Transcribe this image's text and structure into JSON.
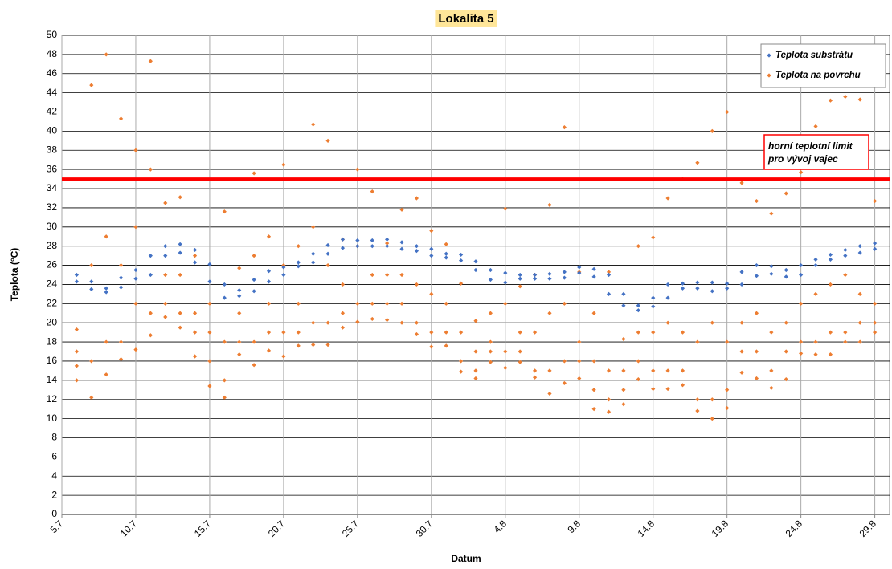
{
  "chart_data": {
    "type": "scatter",
    "title": "Lokalita 5",
    "x_label": "Datum",
    "y_label": "Teplota (°C)",
    "xlim": [
      0,
      56
    ],
    "ylim": [
      0,
      50
    ],
    "xticks": [
      {
        "value": 0,
        "label": "5.7"
      },
      {
        "value": 5,
        "label": "10.7"
      },
      {
        "value": 10,
        "label": "15.7"
      },
      {
        "value": 15,
        "label": "20.7"
      },
      {
        "value": 20,
        "label": "25.7"
      },
      {
        "value": 25,
        "label": "30.7"
      },
      {
        "value": 30,
        "label": "4.8"
      },
      {
        "value": 35,
        "label": "9.8"
      },
      {
        "value": 40,
        "label": "14.8"
      },
      {
        "value": 45,
        "label": "19.8"
      },
      {
        "value": 50,
        "label": "24.8"
      },
      {
        "value": 55,
        "label": "29.8"
      }
    ],
    "yticks": [
      0,
      2,
      4,
      6,
      8,
      10,
      12,
      14,
      16,
      18,
      20,
      22,
      24,
      26,
      28,
      30,
      32,
      34,
      36,
      38,
      40,
      42,
      44,
      46,
      48,
      50
    ],
    "grid": true,
    "legend": "top-right",
    "reference_line": {
      "value": 35,
      "color": "#ff0000",
      "label": [
        "horní teplotní limit",
        "pro vývoj  vajec"
      ]
    },
    "series": [
      {
        "name": "Teplota na povrchu",
        "color": "#ed7d31",
        "x": [
          1,
          1,
          1,
          1,
          2,
          2,
          2,
          2,
          3,
          3,
          3,
          3,
          4,
          4,
          4,
          4,
          5,
          5,
          5,
          5,
          6,
          6,
          6,
          6,
          7,
          7,
          7,
          7,
          8,
          8,
          8,
          8,
          9,
          9,
          9,
          9,
          10,
          10,
          10,
          10,
          11,
          11,
          11,
          11,
          12,
          12,
          12,
          12,
          13,
          13,
          13,
          13,
          14,
          14,
          14,
          14,
          15,
          15,
          15,
          15,
          16,
          16,
          16,
          16,
          17,
          17,
          17,
          17,
          18,
          18,
          18,
          18,
          19,
          19,
          19,
          19,
          20,
          20,
          20,
          20,
          21,
          21,
          21,
          21,
          22,
          22,
          22,
          22,
          23,
          23,
          23,
          23,
          24,
          24,
          24,
          24,
          25,
          25,
          25,
          25,
          26,
          26,
          26,
          26,
          27,
          27,
          27,
          27,
          28,
          28,
          28,
          28,
          29,
          29,
          29,
          29,
          30,
          30,
          30,
          30,
          31,
          31,
          31,
          31,
          32,
          32,
          32,
          32,
          33,
          33,
          33,
          33,
          34,
          34,
          34,
          34,
          35,
          35,
          35,
          35,
          36,
          36,
          36,
          36,
          37,
          37,
          37,
          37,
          38,
          38,
          38,
          38,
          39,
          39,
          39,
          39,
          40,
          40,
          40,
          40,
          41,
          41,
          41,
          41,
          42,
          42,
          42,
          42,
          43,
          43,
          43,
          43,
          44,
          44,
          44,
          44,
          45,
          45,
          45,
          45,
          46,
          46,
          46,
          46,
          47,
          47,
          47,
          47,
          48,
          48,
          48,
          48,
          49,
          49,
          49,
          49,
          50,
          50,
          50,
          50,
          51,
          51,
          51,
          51,
          52,
          52,
          52,
          52,
          53,
          53,
          53,
          53,
          54,
          54,
          54,
          54,
          55,
          55,
          55,
          55
        ],
        "values": [
          14,
          15.5,
          17,
          19.3,
          12.2,
          16,
          26,
          44.8,
          14.6,
          18,
          29,
          48,
          16.2,
          18,
          26,
          41.3,
          17.2,
          22,
          30,
          38,
          18.7,
          21,
          36,
          47.3,
          20.6,
          22,
          25,
          32.5,
          19.5,
          21,
          25,
          33.1,
          16.5,
          19,
          21,
          27,
          13.4,
          16,
          19,
          22,
          12.2,
          14,
          18,
          31.6,
          16.7,
          18,
          21,
          25.7,
          15.6,
          18,
          27,
          35.6,
          17.1,
          19,
          22,
          29,
          16.5,
          19,
          26,
          36.5,
          17.6,
          19,
          22,
          28,
          17.7,
          20,
          30,
          40.7,
          17.7,
          20,
          26,
          39,
          19.5,
          21,
          24,
          28.7,
          20.1,
          22,
          28,
          36,
          20.4,
          22,
          25,
          33.7,
          20.3,
          22,
          25,
          28.3,
          20,
          22,
          25,
          31.8,
          18.8,
          20,
          24,
          33,
          17.5,
          19,
          23,
          29.6,
          17.6,
          19,
          22,
          28.2,
          14.9,
          16,
          19,
          24.1,
          14.2,
          15,
          17,
          20.2,
          15.9,
          17,
          18,
          21,
          15.3,
          17,
          22,
          31.9,
          15.9,
          17,
          19,
          23.8,
          14.3,
          15,
          19,
          25,
          12.6,
          15,
          21,
          32.3,
          13.7,
          16,
          22,
          40.4,
          14.2,
          16,
          18,
          25.3,
          11,
          13,
          16,
          21,
          10.7,
          12,
          15,
          25.3,
          11.5,
          13,
          15,
          18.3,
          14.1,
          16,
          19,
          28,
          13.1,
          15,
          19,
          28.9,
          13.1,
          15,
          20,
          33,
          13.5,
          15,
          19,
          35,
          10.8,
          12,
          18,
          36.7,
          10,
          12,
          20,
          40,
          11.1,
          13,
          18,
          42,
          14.8,
          17,
          20,
          34.6,
          14.2,
          17,
          21,
          32.7,
          13.2,
          15,
          19,
          31.4,
          14.1,
          17,
          20,
          33.5,
          16.8,
          18,
          22,
          35.7,
          16.7,
          18,
          23,
          40.5,
          16.7,
          19,
          24,
          43.2,
          18,
          19,
          25,
          43.6,
          18,
          20,
          23,
          43.3,
          19,
          20,
          22,
          32.7
        ]
      },
      {
        "name": "Teplota substrátu",
        "color": "#4472c4",
        "x": [
          1,
          1,
          2,
          2,
          3,
          3,
          4,
          4,
          5,
          5,
          6,
          6,
          7,
          7,
          8,
          8,
          9,
          9,
          10,
          10,
          11,
          11,
          12,
          12,
          13,
          13,
          14,
          14,
          15,
          15,
          16,
          16,
          17,
          17,
          18,
          18,
          19,
          19,
          20,
          20,
          21,
          21,
          22,
          22,
          23,
          23,
          24,
          24,
          25,
          25,
          26,
          26,
          27,
          27,
          28,
          28,
          29,
          29,
          30,
          30,
          31,
          31,
          32,
          32,
          33,
          33,
          34,
          34,
          35,
          35,
          36,
          36,
          37,
          37,
          38,
          38,
          39,
          39,
          40,
          40,
          41,
          41,
          42,
          42,
          43,
          43,
          44,
          44,
          45,
          45,
          46,
          46,
          47,
          47,
          48,
          48,
          49,
          49,
          50,
          50,
          51,
          51,
          52,
          52,
          53,
          53,
          54,
          54,
          55,
          55
        ],
        "values": [
          24.3,
          25,
          23.5,
          24.3,
          23.2,
          23.6,
          23.7,
          24.7,
          24.6,
          25.5,
          25,
          27,
          27,
          28,
          27.3,
          28.2,
          26.3,
          27.6,
          24.3,
          26.1,
          22.6,
          24,
          22.8,
          23.4,
          23.3,
          24.5,
          24.3,
          25.4,
          25,
          25.8,
          25.9,
          26.3,
          26.3,
          27.2,
          27.2,
          28.1,
          27.8,
          28.7,
          28,
          28.6,
          28,
          28.6,
          28,
          28.7,
          27.7,
          28.4,
          27.5,
          28,
          27,
          27.7,
          26.8,
          27.2,
          26.5,
          27.1,
          25.5,
          26.4,
          24.5,
          25.5,
          24.2,
          25.2,
          24.6,
          25,
          24.6,
          25,
          24.6,
          25.1,
          24.7,
          25.3,
          25.2,
          25.8,
          24.8,
          25.6,
          23,
          25,
          21.8,
          23,
          21.3,
          21.8,
          21.7,
          22.6,
          22.6,
          24,
          23.6,
          24.1,
          23.6,
          24.2,
          23.3,
          24.2,
          23.6,
          24.1,
          24,
          25.3,
          24.9,
          26,
          25.1,
          25.9,
          24.8,
          25.5,
          25,
          26,
          26,
          26.6,
          26.6,
          27.1,
          27,
          27.6,
          27.3,
          28,
          27.7,
          28.3
        ]
      }
    ]
  }
}
